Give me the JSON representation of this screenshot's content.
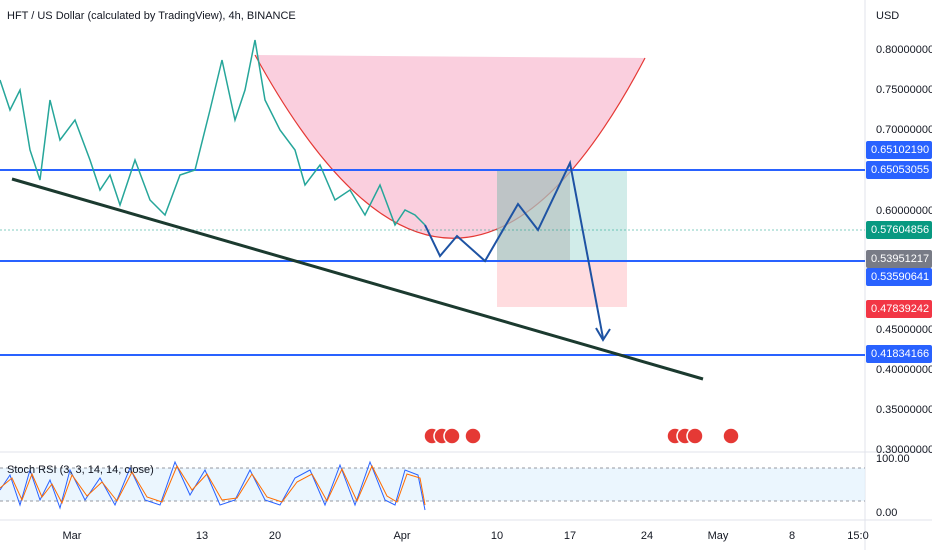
{
  "header": {
    "title": "HFT / US Dollar (calculated by TradingView), 4h, BINANCE"
  },
  "price_axis": {
    "currency": "USD",
    "labels": [
      "0.80000000",
      "0.75000000",
      "0.70000000",
      "0.60000000",
      "0.45000000",
      "0.40000000",
      "0.35000000",
      "0.30000000"
    ]
  },
  "price_badges": [
    {
      "label": "0.65102190",
      "color": "#2962ff"
    },
    {
      "label": "0.65053055",
      "color": "#2962ff"
    },
    {
      "label": "0.57604856",
      "color": "#089981"
    },
    {
      "label": "0.53951217",
      "color": "#787b86"
    },
    {
      "label": "0.53590641",
      "color": "#2962ff"
    },
    {
      "label": "0.47839242",
      "color": "#f23645"
    },
    {
      "label": "0.41834166",
      "color": "#2962ff"
    }
  ],
  "indicator": {
    "title": "Stoch RSI (3, 3, 14, 14, close)",
    "axis_labels": [
      "100.00",
      "0.00"
    ]
  },
  "time_axis": {
    "labels": [
      "Mar",
      "13",
      "20",
      "Apr",
      "10",
      "17",
      "24",
      "May",
      "8",
      "15:0"
    ]
  }
}
